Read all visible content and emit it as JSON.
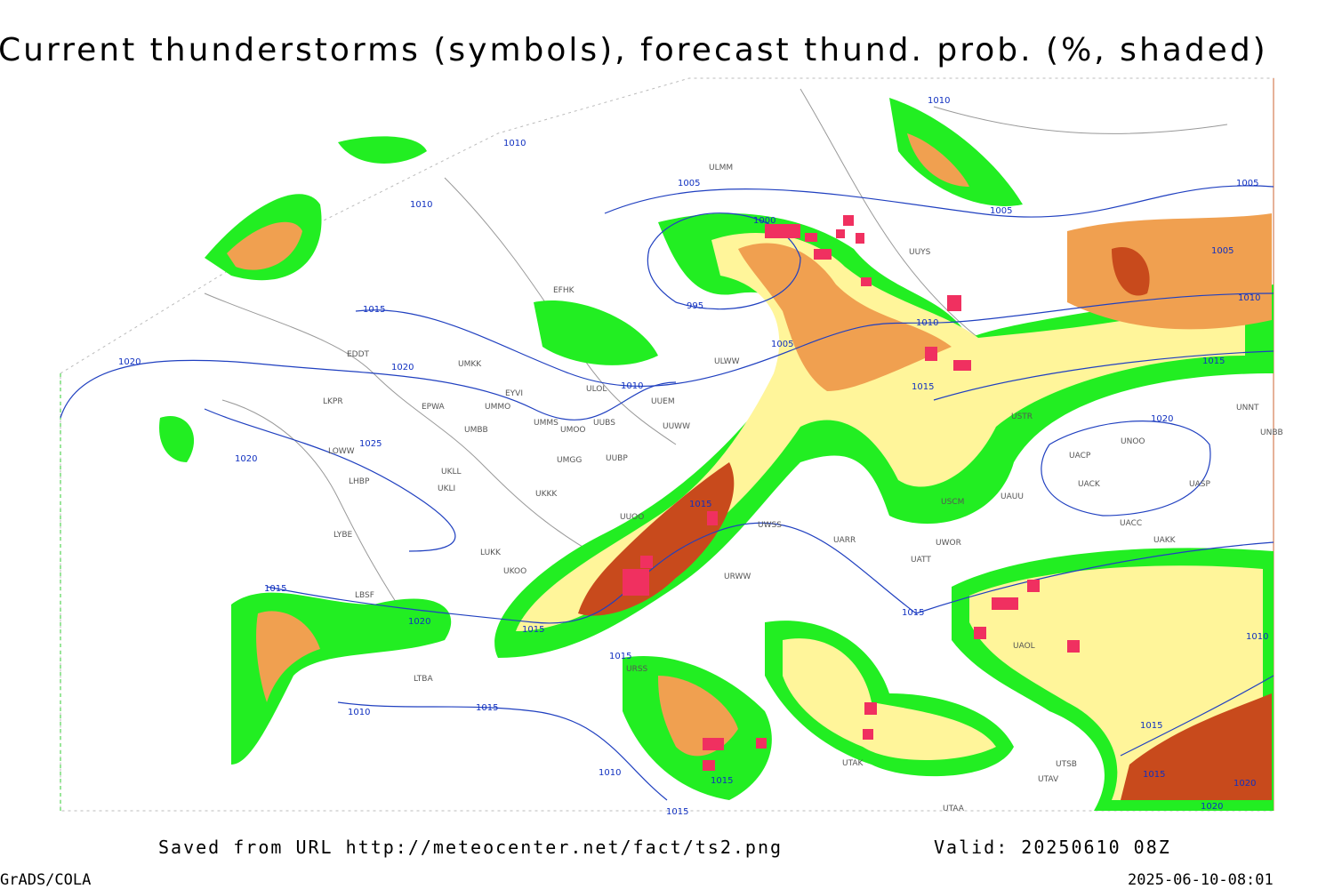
{
  "header": {
    "title": "Current thunderstorms (symbols), forecast thund. prob. (%, shaded)"
  },
  "footer": {
    "source": "Saved from URL http://meteocenter.net/fact/ts2.png",
    "valid": "Valid: 20250610 08Z",
    "software": "GrADS/COLA",
    "timestamp": "2025-06-10-08:01"
  },
  "isobar_labels": [
    "1010",
    "1010",
    "1005",
    "1010",
    "1000",
    "1005",
    "1005",
    "1005",
    "1010",
    "995",
    "1015",
    "1010",
    "1005",
    "1015",
    "1020",
    "1020",
    "1010",
    "1015",
    "1020",
    "1025",
    "1020",
    "1015",
    "1015",
    "1015",
    "1020",
    "1015",
    "1010",
    "1015",
    "1015",
    "1010",
    "1015",
    "1010",
    "1015",
    "1015",
    "1020",
    "1020",
    "1015"
  ],
  "stations": [
    "UUYS",
    "ULMM",
    "EFHK",
    "ULWW",
    "UMKK",
    "EDDT",
    "ULOL",
    "UUEM",
    "EYVI",
    "EPWA",
    "UMMO",
    "LKPR",
    "UMMS",
    "UMOO",
    "UUBS",
    "UUWW",
    "UMBB",
    "USTR",
    "UNNT",
    "UNBB",
    "UNOO",
    "UACP",
    "UACK",
    "UASP",
    "UAUU",
    "UACC",
    "UAKK",
    "UMGG",
    "UUBP",
    "LOWW",
    "UKLL",
    "UKLI",
    "LHBP",
    "UKKK",
    "UUOO",
    "USCM",
    "UWSS",
    "UARR",
    "UWOR",
    "URWW",
    "UATT",
    "LYBE",
    "LUKK",
    "UKOO",
    "LBSF",
    "LTBA",
    "URSS",
    "UTAK",
    "UTSB",
    "UTAV",
    "UTAA",
    "UAOL"
  ]
}
